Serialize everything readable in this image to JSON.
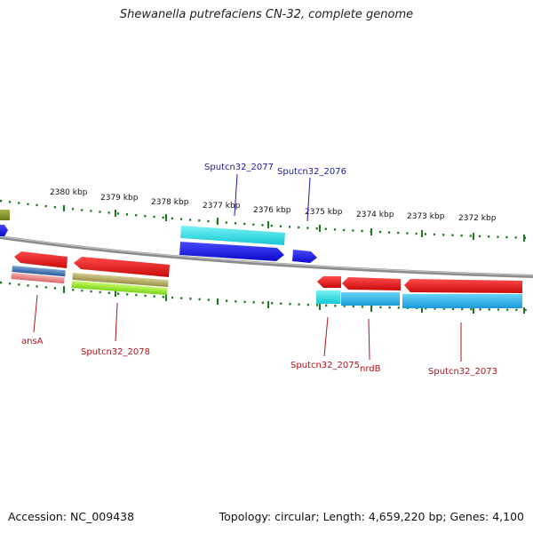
{
  "title": "Shewanella putrefaciens CN-32, complete genome",
  "footer": {
    "accession": "Accession: NC_009438",
    "summary": "Topology: circular; Length: 4,659,220 bp; Genes: 4,100"
  },
  "ticks": [
    "2380 kbp",
    "2379 kbp",
    "2378 kbp",
    "2377 kbp",
    "2376 kbp",
    "2375 kbp",
    "2374 kbp",
    "2373 kbp",
    "2372 kbp"
  ],
  "gene_labels": {
    "top": [
      "Sputcn32_2077",
      "Sputcn32_2076"
    ],
    "bottom": [
      "ansA",
      "Sputcn32_2078",
      "Sputcn32_2075",
      "nrdB",
      "Sputcn32_2073"
    ]
  },
  "colors": {
    "forward_cds": "#1414e6",
    "reverse_cds": "#e61414",
    "forward_feature": "#22d6dc",
    "reverse_feature": "#22b4e6",
    "olive": "#8a9a2a",
    "lime": "#90e22a",
    "tan": "#a8a060",
    "salmon": "#e88a8a",
    "steelblue": "#4a7ab8",
    "backbone": "#808080",
    "tick": "#1a7a1a"
  }
}
